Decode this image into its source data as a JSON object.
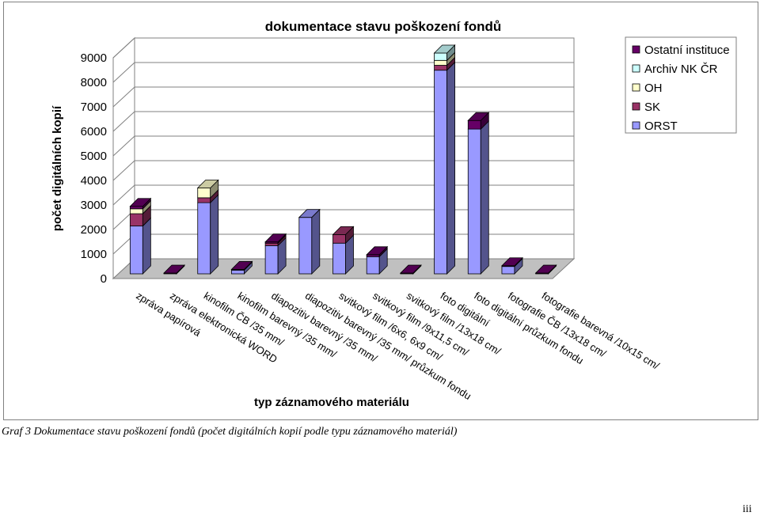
{
  "chart_data": {
    "type": "bar",
    "stacked": true,
    "three_d": true,
    "title": "dokumentace stavu poškození fondů",
    "xlabel": "typ záznamového materiálu",
    "ylabel": "počet digitálních kopií",
    "ylim": [
      0,
      9000
    ],
    "yticks": [
      0,
      1000,
      2000,
      3000,
      4000,
      5000,
      6000,
      7000,
      8000,
      9000
    ],
    "grid": true,
    "legend_position": "top-right",
    "categories": [
      "zpráva papírová",
      "zpráva elektronická WORD",
      "kinofilm ČB /35 mm/",
      "kinofilm barevný /35 mm/",
      "diapozitiv barevný /35 mm/",
      "diapozitiv barevný /35 mm/ průzkum fondu",
      "svitkový film /6x6, 6x9 cm/",
      "svitkový film /9x11,5 cm/",
      "svitkový film /13x18 cm/",
      "foto digitální",
      "foto digitální průzkum fondu",
      "fotografie ČB /13x18 cm/",
      "fotografie barevná /10x15 cm/"
    ],
    "series": [
      {
        "name": "ORST",
        "color": "#9999FF",
        "values": [
          1950,
          0,
          2900,
          150,
          1150,
          2300,
          1250,
          700,
          0,
          8300,
          5900,
          300,
          0
        ]
      },
      {
        "name": "SK",
        "color": "#993366",
        "values": [
          500,
          0,
          200,
          0,
          100,
          0,
          350,
          0,
          0,
          200,
          0,
          0,
          0
        ]
      },
      {
        "name": "OH",
        "color": "#FFFFCC",
        "values": [
          200,
          0,
          400,
          0,
          0,
          0,
          0,
          0,
          0,
          200,
          0,
          0,
          0
        ]
      },
      {
        "name": "Archiv NK ČR",
        "color": "#CCFFFF",
        "values": [
          0,
          0,
          0,
          0,
          0,
          0,
          0,
          0,
          0,
          300,
          0,
          0,
          0
        ]
      },
      {
        "name": "Ostatní instituce",
        "color": "#660066",
        "values": [
          100,
          30,
          0,
          30,
          50,
          0,
          0,
          80,
          30,
          0,
          350,
          30,
          30
        ]
      }
    ],
    "legend_order": [
      "Ostatní instituce",
      "Archiv NK ČR",
      "OH",
      "SK",
      "ORST"
    ]
  },
  "caption": "Graf 3 Dokumentace stavu poškození fondů (počet digitálních kopií podle typu záznamového materiál)",
  "page_number": "iii"
}
